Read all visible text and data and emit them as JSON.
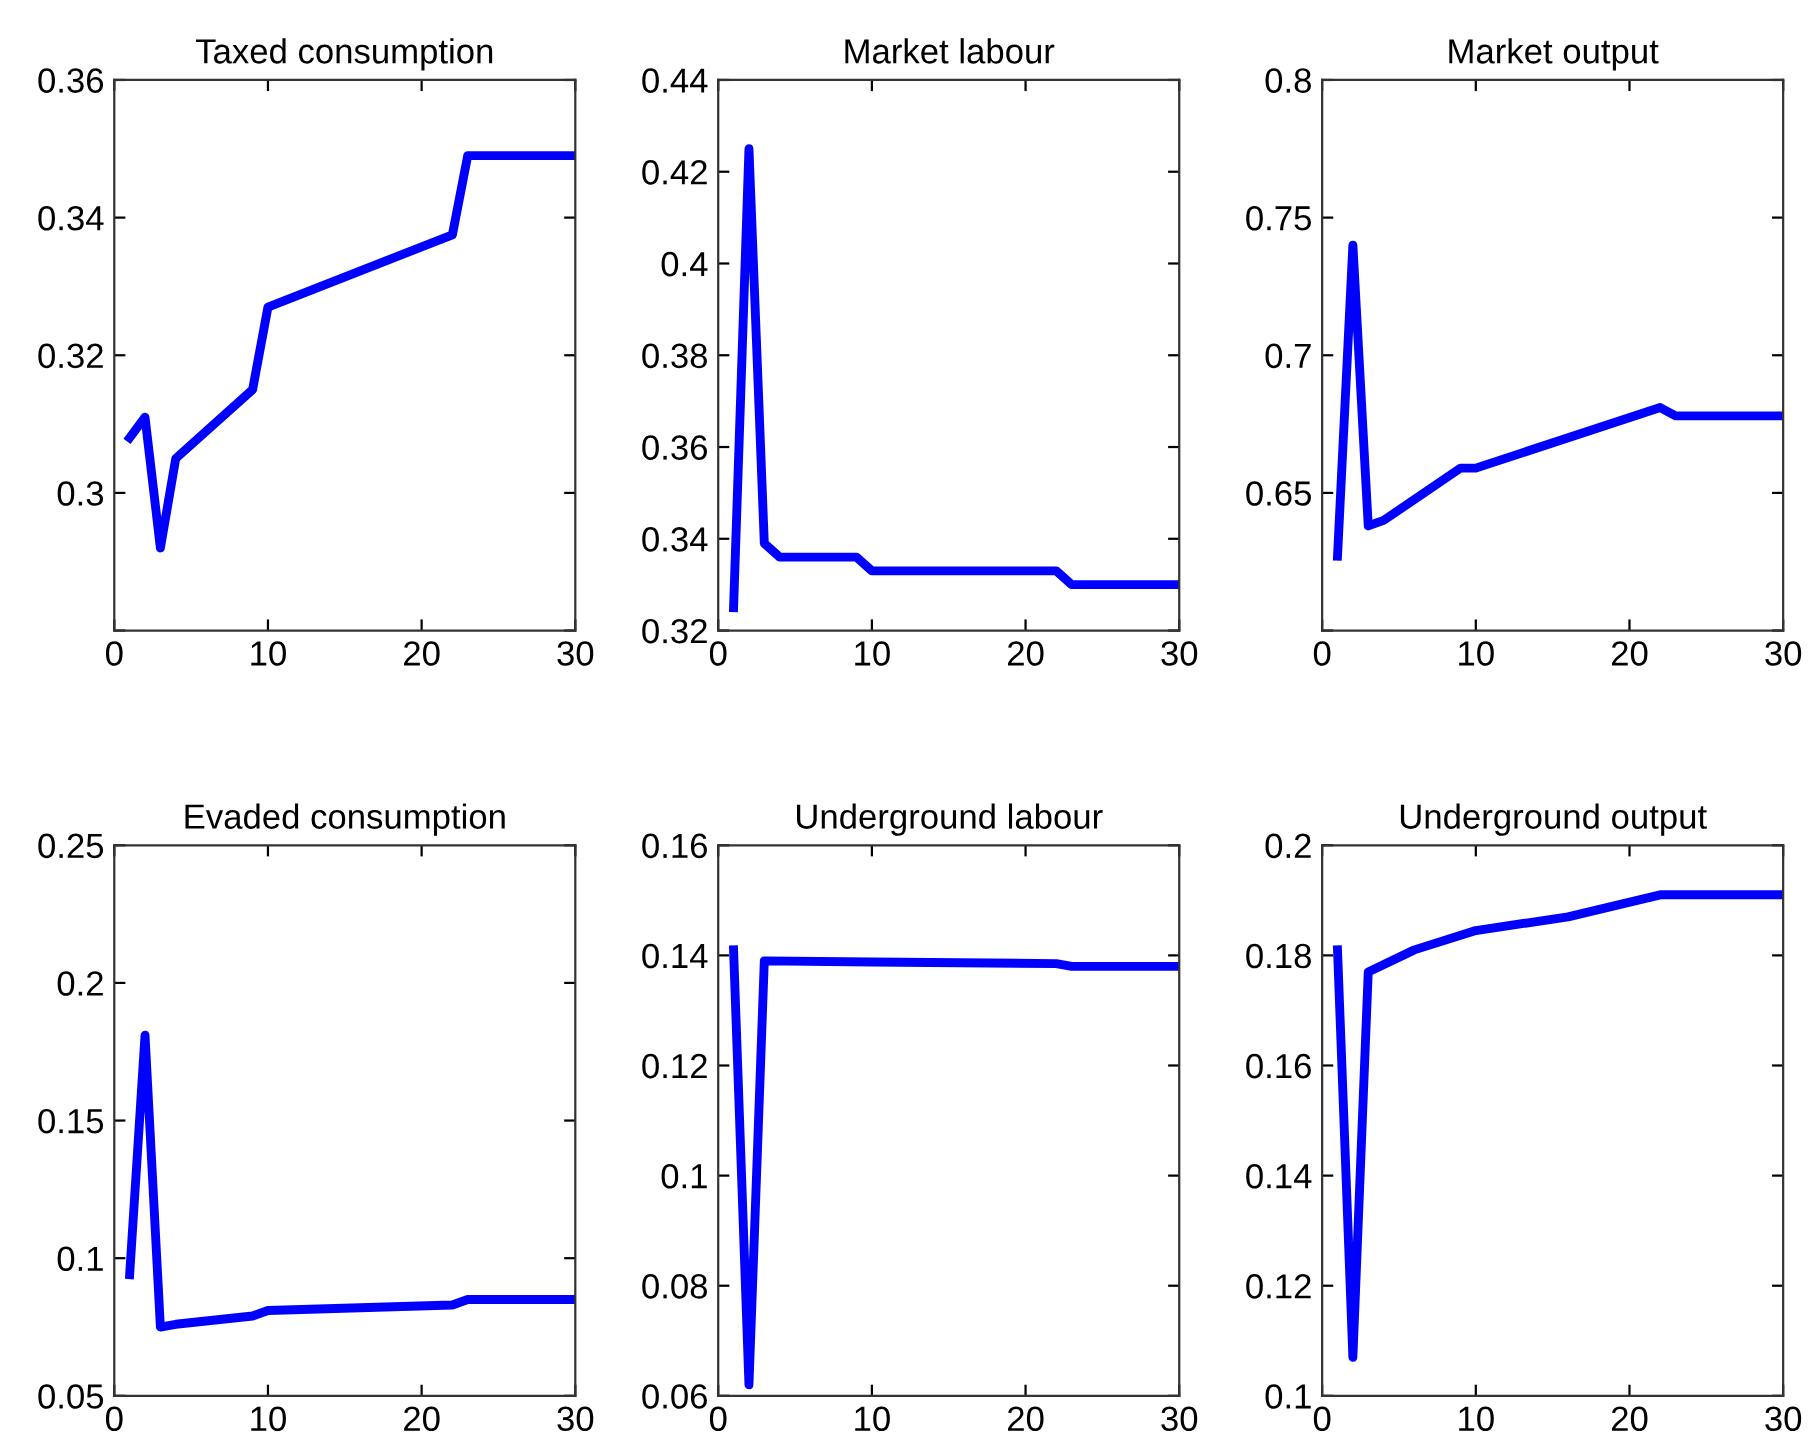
{
  "chart_data": [
    {
      "type": "line",
      "title": "Taxed consumption",
      "x": [
        1,
        2,
        3,
        4,
        9,
        10,
        22,
        23,
        30
      ],
      "series": [
        {
          "color": "#0000ff",
          "values": [
            0.308,
            0.311,
            0.292,
            0.305,
            0.315,
            0.327,
            0.3375,
            0.349,
            0.349
          ]
        }
      ],
      "xlim": [
        0,
        30
      ],
      "xticks": [
        0,
        10,
        20,
        30
      ],
      "ylim": [
        0.28,
        0.36
      ],
      "yticks": [
        {
          "value": 0.28,
          "label": null
        },
        {
          "value": 0.3,
          "label": "0.3"
        },
        0.32,
        0.34,
        0.36
      ],
      "grid": false
    },
    {
      "type": "line",
      "title": "Market labour",
      "x": [
        1,
        2,
        3,
        4,
        9,
        10,
        22,
        23,
        30
      ],
      "series": [
        {
          "color": "#0000ff",
          "values": [
            0.325,
            0.425,
            0.339,
            0.336,
            0.336,
            0.333,
            0.333,
            0.33,
            0.33
          ]
        }
      ],
      "xlim": [
        0,
        30
      ],
      "xticks": [
        0,
        10,
        20,
        30
      ],
      "ylim": [
        0.32,
        0.44
      ],
      "yticks": [
        0.32,
        0.34,
        0.36,
        0.38,
        {
          "value": 0.4,
          "label": "0.4"
        },
        0.42,
        0.44
      ],
      "grid": false
    },
    {
      "type": "line",
      "title": "Market output",
      "x": [
        1,
        2,
        3,
        4,
        9,
        10,
        22,
        23,
        30
      ],
      "series": [
        {
          "color": "#0000ff",
          "values": [
            0.627,
            0.74,
            0.638,
            0.64,
            0.659,
            0.659,
            0.681,
            0.678,
            0.678
          ]
        }
      ],
      "xlim": [
        0,
        30
      ],
      "xticks": [
        0,
        10,
        20,
        30
      ],
      "ylim": [
        0.6,
        0.8
      ],
      "yticks": [
        {
          "value": 0.6,
          "label": null
        },
        0.65,
        {
          "value": 0.7,
          "label": "0.7"
        },
        0.75,
        {
          "value": 0.8,
          "label": "0.8"
        }
      ],
      "grid": false
    },
    {
      "type": "line",
      "title": "Evaded consumption",
      "x": [
        1,
        2,
        3,
        4,
        9,
        10,
        22,
        23,
        30
      ],
      "series": [
        {
          "color": "#0000ff",
          "values": [
            0.094,
            0.181,
            0.075,
            0.076,
            0.079,
            0.081,
            0.083,
            0.085,
            0.085
          ]
        }
      ],
      "xlim": [
        0,
        30
      ],
      "xticks": [
        0,
        10,
        20,
        30
      ],
      "ylim": [
        0.05,
        0.25
      ],
      "yticks": [
        0.05,
        {
          "value": 0.1,
          "label": "0.1"
        },
        0.15,
        {
          "value": 0.2,
          "label": "0.2"
        },
        0.25
      ],
      "grid": false
    },
    {
      "type": "line",
      "title": "Underground labour",
      "x": [
        1,
        2,
        3,
        10,
        22,
        23,
        30
      ],
      "series": [
        {
          "color": "#0000ff",
          "values": [
            0.141,
            0.062,
            0.139,
            0.1388,
            0.1385,
            0.138,
            0.138
          ]
        }
      ],
      "xlim": [
        0,
        30
      ],
      "xticks": [
        0,
        10,
        20,
        30
      ],
      "ylim": [
        0.06,
        0.16
      ],
      "yticks": [
        0.06,
        0.08,
        {
          "value": 0.1,
          "label": "0.1"
        },
        0.12,
        0.14,
        0.16
      ],
      "grid": false
    },
    {
      "type": "line",
      "title": "Underground output",
      "x": [
        1,
        2,
        3,
        6,
        10,
        16,
        22,
        30
      ],
      "series": [
        {
          "color": "#0000ff",
          "values": [
            0.181,
            0.107,
            0.177,
            0.181,
            0.1845,
            0.187,
            0.191,
            0.191
          ]
        }
      ],
      "xlim": [
        0,
        30
      ],
      "xticks": [
        0,
        10,
        20,
        30
      ],
      "ylim": [
        0.1,
        0.2
      ],
      "yticks": [
        {
          "value": 0.1,
          "label": "0.1"
        },
        0.12,
        0.14,
        0.16,
        0.18,
        {
          "value": 0.2,
          "label": "0.2"
        }
      ],
      "grid": false
    }
  ]
}
